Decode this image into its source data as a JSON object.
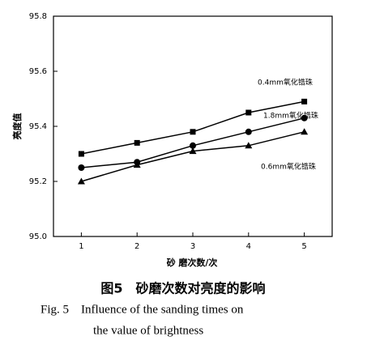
{
  "chart_data": {
    "type": "line",
    "x": [
      1,
      2,
      3,
      4,
      5
    ],
    "xlim": [
      0.5,
      5.5
    ],
    "xticks": [
      1,
      2,
      3,
      4,
      5
    ],
    "ylim": [
      95.0,
      95.8
    ],
    "yticks": [
      {
        "value": 95.0,
        "label": "95.0"
      },
      95.2,
      95.4,
      95.6,
      95.8
    ],
    "x_label": "砂 磨次数/次",
    "y_label": "亮度值",
    "series": [
      {
        "name": "0.4mm氧化锆珠",
        "color": "#000000",
        "marker": "square",
        "values": [
          95.3,
          95.34,
          95.38,
          95.45,
          95.49
        ]
      },
      {
        "name": "1.8mm氧化锆珠",
        "color": "#000000",
        "marker": "circle",
        "values": [
          95.25,
          95.27,
          95.33,
          95.38,
          95.43
        ]
      },
      {
        "name": "0.6mm氧化锆珠",
        "color": "#000000",
        "marker": "triangle",
        "values": [
          95.2,
          95.26,
          95.31,
          95.33,
          95.38
        ]
      }
    ]
  },
  "caption": {
    "cn": "图5　砂磨次数对亮度的影响",
    "en_line1": "Fig. 5　Influence of the sanding times on",
    "en_line2": "the value of brightness"
  }
}
